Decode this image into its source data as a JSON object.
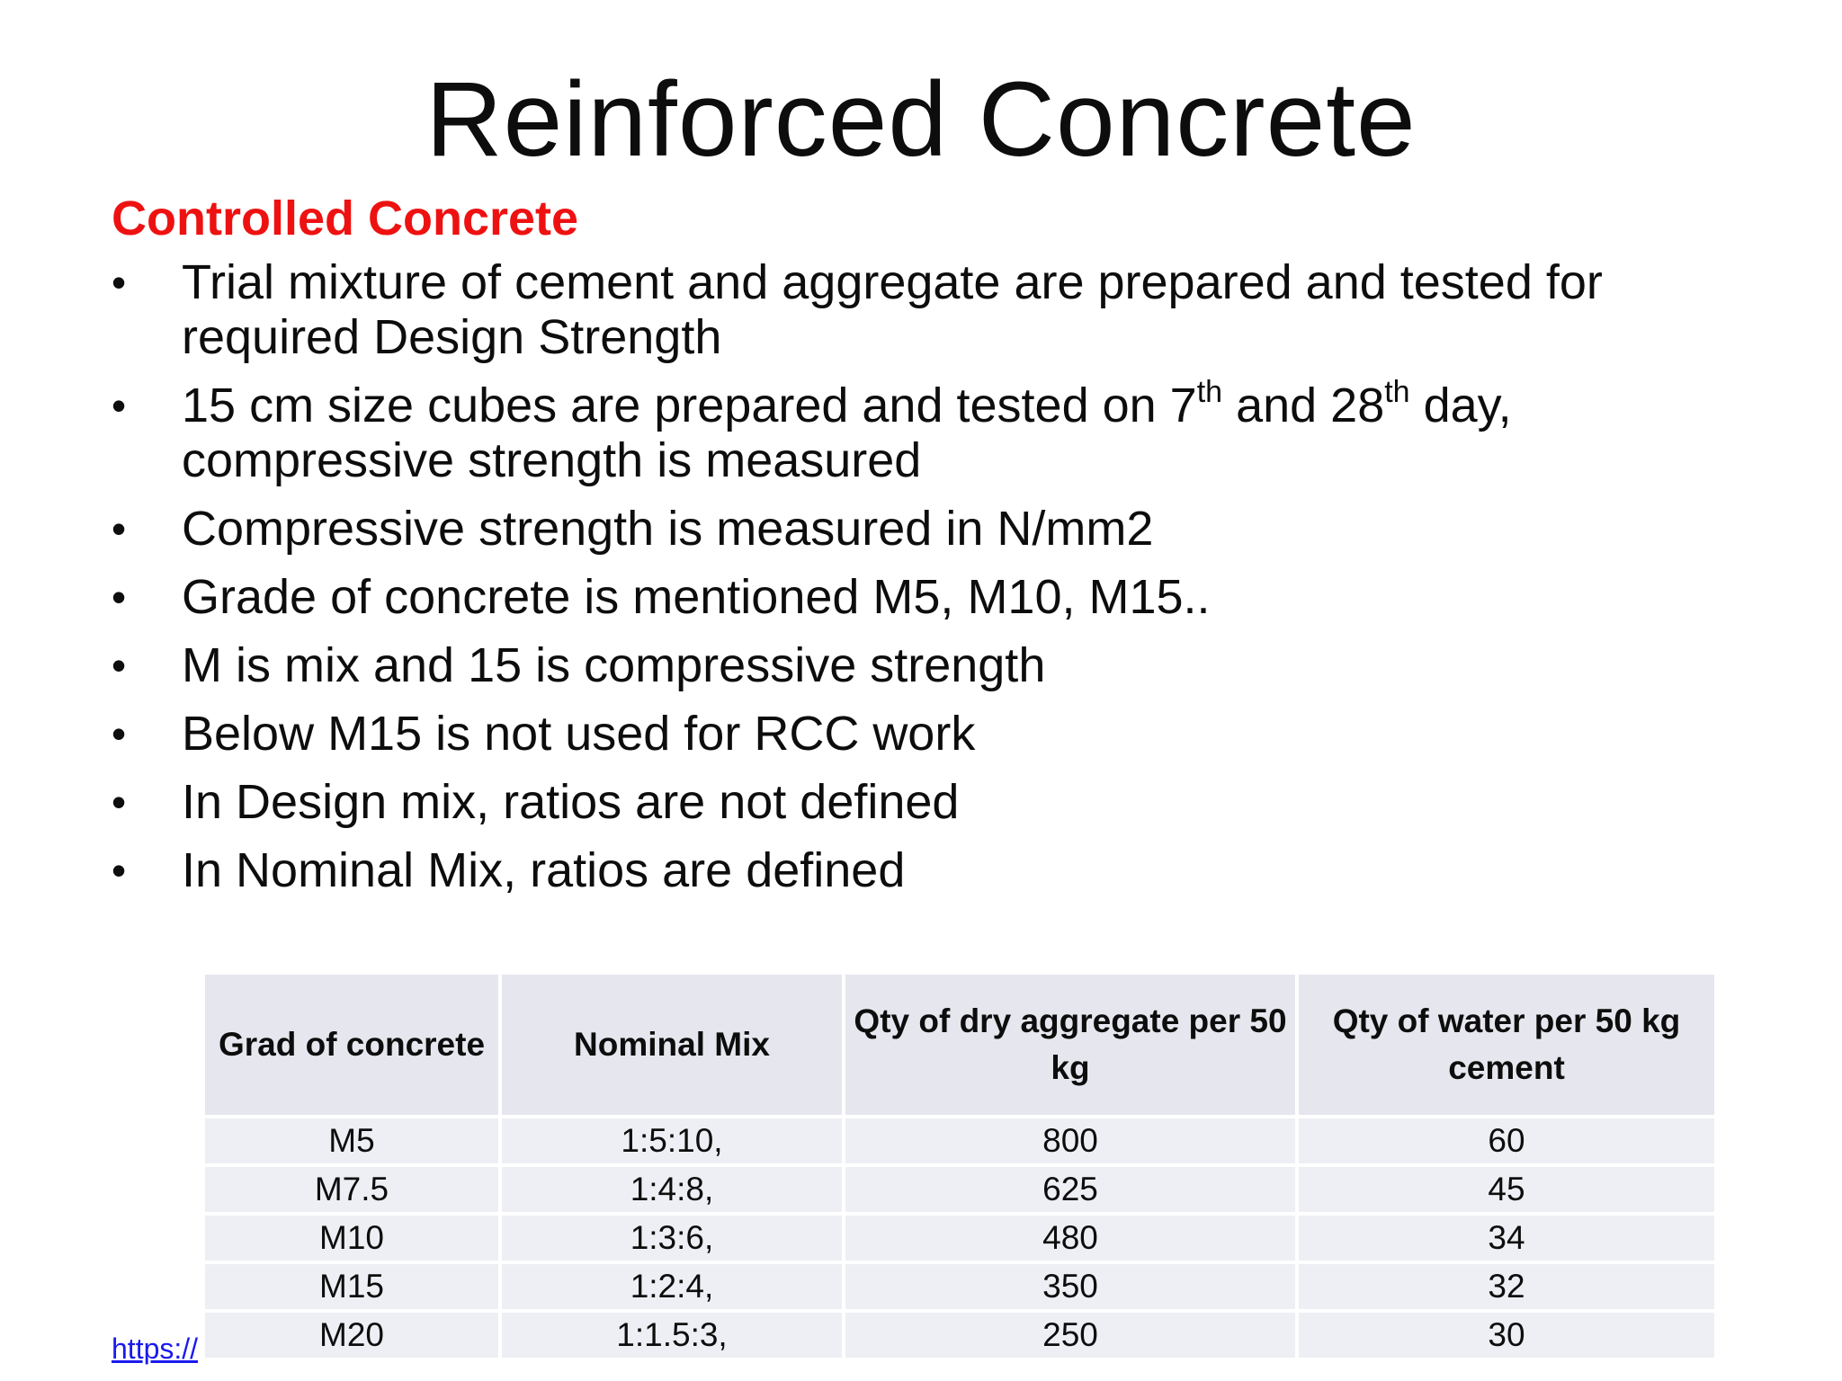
{
  "slide": {
    "title": "Reinforced Concrete",
    "subtitle": "Controlled Concrete",
    "bullets": [
      {
        "pre": "Trial mixture of cement and aggregate are prepared and tested for required Design Strength"
      },
      {
        "pre": "15 cm size cubes are prepared and tested on 7",
        "sup1": "th",
        "mid": " and 28",
        "sup2": "th",
        "post": " day, compressive strength is measured"
      },
      {
        "pre": "Compressive strength is measured in N/mm2"
      },
      {
        "pre": "Grade of concrete is mentioned M5, M10, M15.."
      },
      {
        "pre": "M is mix and 15 is compressive strength"
      },
      {
        "pre": "Below M15 is not used for RCC work"
      },
      {
        "pre": "In Design mix, ratios are not defined"
      },
      {
        "pre": "In Nominal Mix, ratios are defined"
      }
    ],
    "bullet_symbol": "•"
  },
  "table": {
    "headers": [
      "Grad of concrete",
      "Nominal Mix",
      "Qty of dry aggregate per 50 kg",
      "Qty of water per 50 kg cement"
    ],
    "rows": [
      [
        "M5",
        "1:5:10,",
        "800",
        "60"
      ],
      [
        "M7.5",
        "1:4:8,",
        "625",
        "45"
      ],
      [
        "M10",
        "1:3:6,",
        "480",
        "34"
      ],
      [
        "M15",
        "1:2:4,",
        "350",
        "32"
      ],
      [
        "M20",
        "1:1.5:3,",
        "250",
        "30"
      ]
    ]
  },
  "footer": {
    "link_text": "https://",
    "right_text": ""
  }
}
